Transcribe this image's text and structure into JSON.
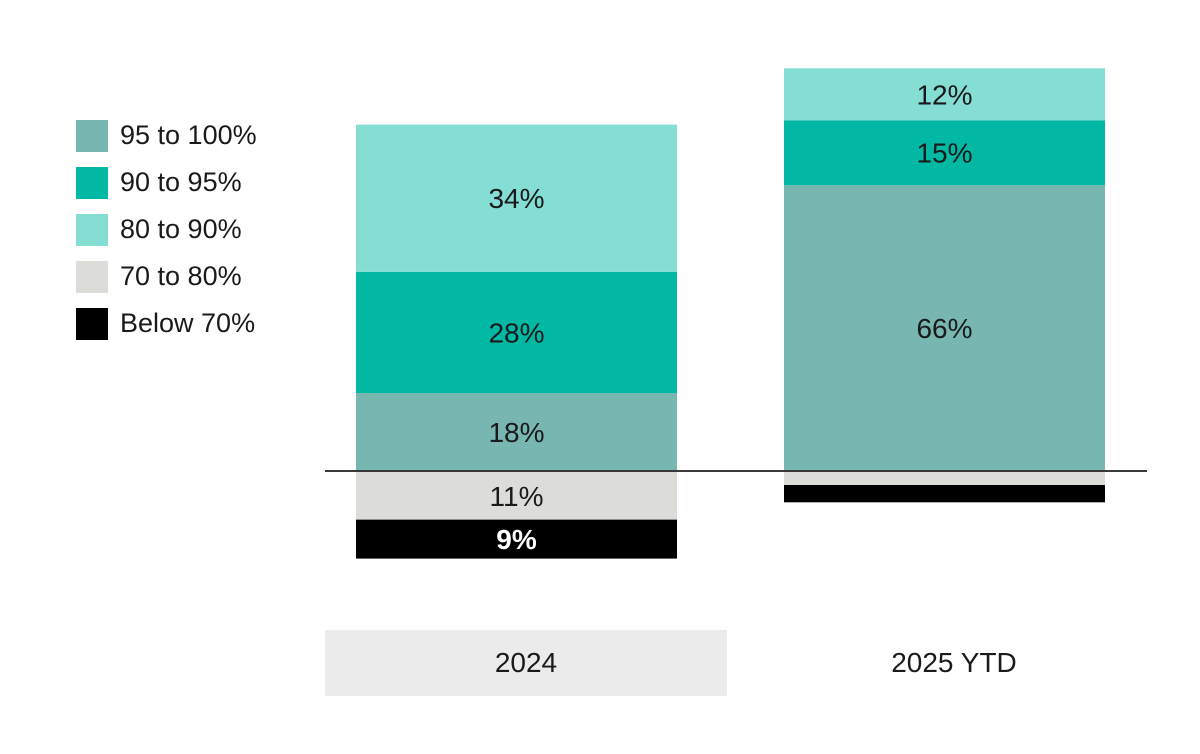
{
  "chart_data": {
    "type": "bar",
    "stacked": true,
    "diverging_baseline": true,
    "categories": [
      "2024",
      "2025 YTD"
    ],
    "series": [
      {
        "name": "95 to 100%",
        "color": "#78b6b0",
        "values": [
          18,
          66
        ],
        "labels": [
          "18%",
          "66%"
        ],
        "above_baseline": true
      },
      {
        "name": "90 to 95%",
        "color": "#00b8a4",
        "values": [
          28,
          15
        ],
        "labels": [
          "28%",
          "15%"
        ],
        "above_baseline": true
      },
      {
        "name": "80 to 90%",
        "color": "#84ded3",
        "values": [
          34,
          12
        ],
        "labels": [
          "34%",
          "12%"
        ],
        "above_baseline": true
      },
      {
        "name": "70 to 80%",
        "color": "#dcdcd8",
        "values": [
          11,
          3
        ],
        "labels": [
          "11%",
          ""
        ],
        "above_baseline": false
      },
      {
        "name": "Below 70%",
        "color": "#000000",
        "values": [
          9,
          4
        ],
        "labels": [
          "9%",
          ""
        ],
        "above_baseline": false
      }
    ],
    "legend_position": "top-left",
    "highlighted_category": "2024",
    "title": "",
    "xlabel": "",
    "ylabel": ""
  }
}
